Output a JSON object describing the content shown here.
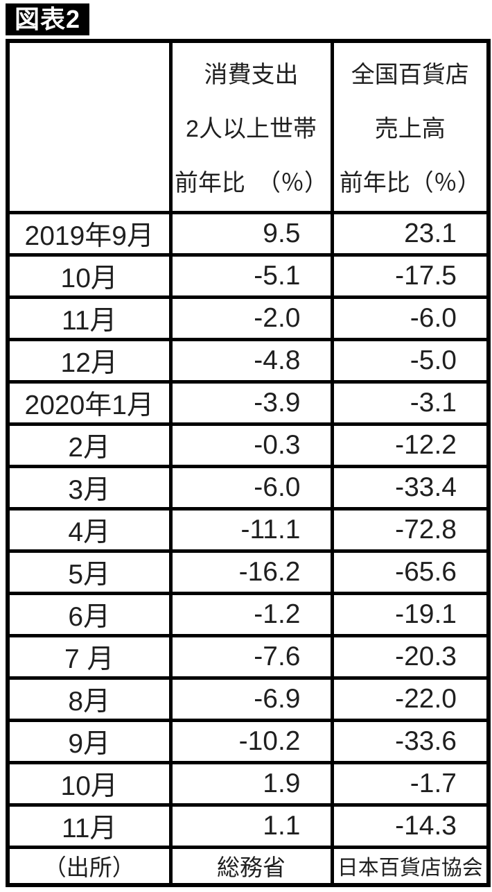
{
  "figure_label": "図表2",
  "colors": {
    "background": "#ffffff",
    "text": "#1f1f1f",
    "border": "#000000",
    "badge_bg": "#000000",
    "badge_text": "#ffffff"
  },
  "table": {
    "header": {
      "period": "",
      "consumption_lines": [
        "消費支出",
        "2人以上世帯",
        "前年比　（％）"
      ],
      "sales_lines": [
        "全国百貨店",
        "売上高",
        "前年比（％）"
      ]
    },
    "rows": [
      {
        "period": "2019年9月",
        "consumption": "9.5",
        "sales": "23.1"
      },
      {
        "period": "10月",
        "consumption": "-5.1",
        "sales": "-17.5"
      },
      {
        "period": "11月",
        "consumption": "-2.0",
        "sales": "-6.0"
      },
      {
        "period": "12月",
        "consumption": "-4.8",
        "sales": "-5.0"
      },
      {
        "period": "2020年1月",
        "consumption": "-3.9",
        "sales": "-3.1"
      },
      {
        "period": "2月",
        "consumption": "-0.3",
        "sales": "-12.2"
      },
      {
        "period": "3月",
        "consumption": "-6.0",
        "sales": "-33.4"
      },
      {
        "period": "4月",
        "consumption": "-11.1",
        "sales": "-72.8"
      },
      {
        "period": "5月",
        "consumption": "-16.2",
        "sales": "-65.6"
      },
      {
        "period": "6月",
        "consumption": "-1.2",
        "sales": "-19.1"
      },
      {
        "period": "7 月",
        "consumption": "-7.6",
        "sales": "-20.3"
      },
      {
        "period": "8月",
        "consumption": "-6.9",
        "sales": "-22.0"
      },
      {
        "period": "9月",
        "consumption": "-10.2",
        "sales": "-33.6"
      },
      {
        "period": "10月",
        "consumption": "1.9",
        "sales": "-1.7"
      },
      {
        "period": "11月",
        "consumption": "1.1",
        "sales": "-14.3"
      }
    ],
    "source": {
      "period": "（出所）",
      "consumption": "総務省",
      "sales": "日本百貨店協会"
    }
  },
  "chart_data": {
    "type": "table",
    "title": "図表2",
    "categories": [
      "2019年9月",
      "10月",
      "11月",
      "12月",
      "2020年1月",
      "2月",
      "3月",
      "4月",
      "5月",
      "6月",
      "7月",
      "8月",
      "9月",
      "10月",
      "11月"
    ],
    "series": [
      {
        "name": "消費支出 2人以上世帯 前年比（％）",
        "values": [
          9.5,
          -5.1,
          -2.0,
          -4.8,
          -3.9,
          -0.3,
          -6.0,
          -11.1,
          -16.2,
          -1.2,
          -7.6,
          -6.9,
          -10.2,
          1.9,
          1.1
        ],
        "source": "総務省"
      },
      {
        "name": "全国百貨店 売上高 前年比（％）",
        "values": [
          23.1,
          -17.5,
          -6.0,
          -5.0,
          -3.1,
          -12.2,
          -33.4,
          -72.8,
          -65.6,
          -19.1,
          -20.3,
          -22.0,
          -33.6,
          -1.7,
          -14.3
        ],
        "source": "日本百貨店協会"
      }
    ]
  }
}
